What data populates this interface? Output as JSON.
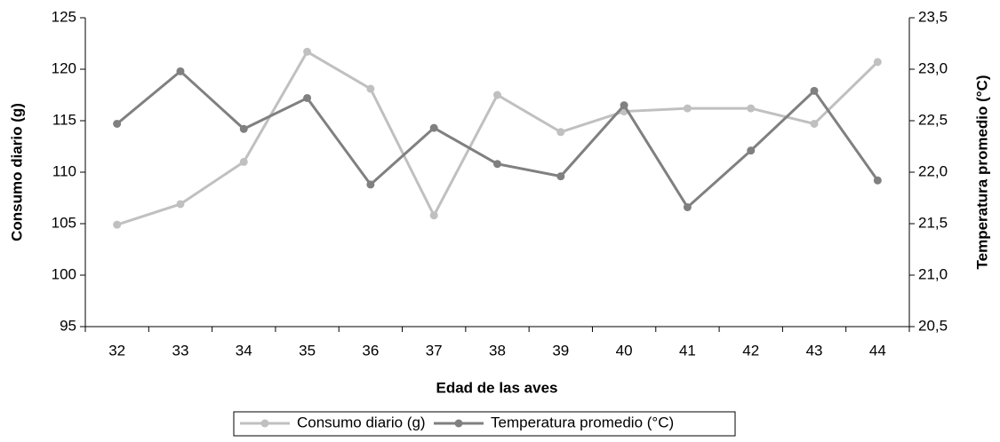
{
  "chart_data": {
    "type": "line",
    "x_label": "Edad de las aves",
    "y_label": "Consumo diario (g)",
    "y2_label": "Temperatura promedio (°C)",
    "categories": [
      "32",
      "33",
      "34",
      "35",
      "36",
      "37",
      "38",
      "39",
      "40",
      "41",
      "42",
      "43",
      "44"
    ],
    "series": [
      {
        "name": "Consumo diario (g)",
        "color": "#c0c0c0",
        "values": [
          104.9,
          106.9,
          111.0,
          121.7,
          118.1,
          105.8,
          117.5,
          113.9,
          115.9,
          116.2,
          116.2,
          114.7,
          120.7
        ]
      },
      {
        "name": "Temperatura promedio (°C)",
        "color": "#808080",
        "axis": "y2",
        "values": [
          22.47,
          22.98,
          22.42,
          22.72,
          21.88,
          22.43,
          22.08,
          21.96,
          22.65,
          21.66,
          22.21,
          22.79,
          21.92
        ]
      }
    ],
    "ylim": [
      95,
      125
    ],
    "yticks": [
      95,
      100,
      105,
      110,
      115,
      120,
      125
    ],
    "y2lim": [
      20.5,
      23.5
    ],
    "y2ticks": [
      {
        "value": 20.5,
        "label": "20,5"
      },
      {
        "value": 21,
        "label": "21,0"
      },
      {
        "value": 21.5,
        "label": "21,5"
      },
      {
        "value": 22,
        "label": "22,0"
      },
      {
        "value": 22.5,
        "label": "22,5"
      },
      {
        "value": 23,
        "label": "23,0"
      },
      {
        "value": 23.5,
        "label": "23,5"
      }
    ],
    "legend": "bottom",
    "grid": false
  }
}
